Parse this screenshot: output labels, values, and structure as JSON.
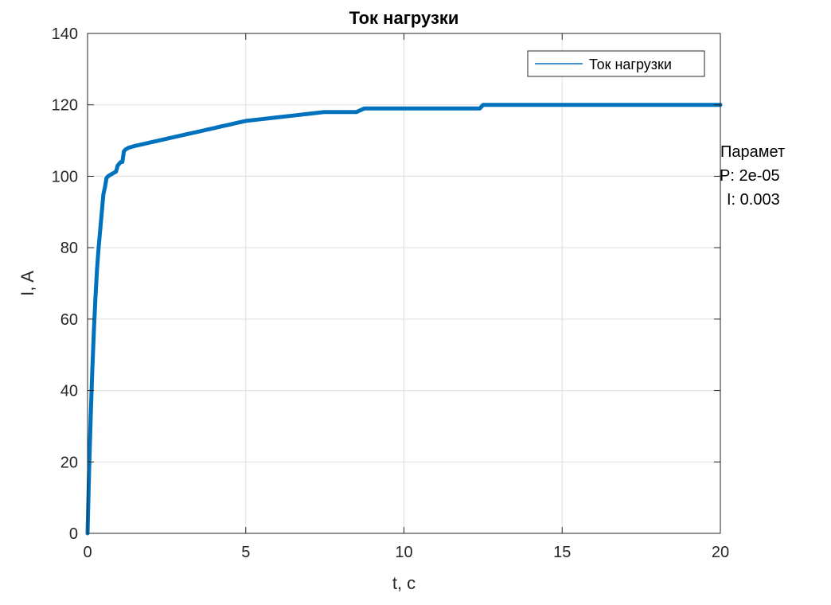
{
  "chart_data": {
    "type": "line",
    "title": "Ток нагрузки",
    "xlabel": "t, c",
    "ylabel": "I, A",
    "xlim": [
      0,
      20
    ],
    "ylim": [
      0,
      140
    ],
    "xticks": [
      0,
      5,
      10,
      15,
      20
    ],
    "yticks": [
      0,
      20,
      40,
      60,
      80,
      100,
      120,
      140
    ],
    "grid": true,
    "legend_position": "top-right",
    "series": [
      {
        "name": "Ток нагрузки",
        "color": "#0072BD",
        "x": [
          0,
          0.05,
          0.1,
          0.15,
          0.2,
          0.25,
          0.3,
          0.35,
          0.4,
          0.45,
          0.5,
          0.55,
          0.6,
          0.65,
          0.7,
          0.8,
          0.9,
          0.95,
          1.0,
          1.05,
          1.1,
          1.15,
          1.2,
          1.3,
          1.5,
          1.75,
          2.0,
          2.25,
          2.5,
          2.75,
          3.0,
          3.25,
          3.5,
          3.75,
          4.0,
          4.25,
          4.5,
          4.75,
          5.0,
          5.5,
          6.0,
          6.5,
          7.0,
          7.5,
          8.0,
          8.5,
          8.75,
          9.0,
          10.0,
          11.0,
          12.0,
          12.4,
          12.5,
          13.0,
          14.0,
          15.0,
          16.0,
          17.0,
          18.0,
          19.0,
          20.0
        ],
        "y": [
          0,
          18,
          33,
          46,
          57,
          66,
          74,
          80,
          85,
          90,
          95,
          97,
          99.5,
          100,
          100.3,
          100.8,
          101.3,
          103,
          103.5,
          104,
          104,
          107,
          107.5,
          108,
          108.5,
          109,
          109.5,
          110,
          110.5,
          111,
          111.5,
          112,
          112.5,
          113,
          113.5,
          114,
          114.5,
          115,
          115.5,
          116,
          116.5,
          117,
          117.5,
          118,
          118,
          118,
          119,
          119,
          119,
          119,
          119,
          119,
          120,
          120,
          120,
          120,
          120,
          120,
          120,
          120,
          120
        ]
      }
    ]
  },
  "annotation": {
    "lines": [
      "Парамет",
      "P: 2e-05",
      "I: 0.003"
    ]
  }
}
